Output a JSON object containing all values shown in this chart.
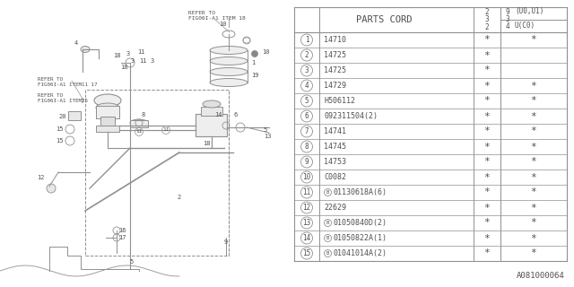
{
  "title": "PARTS CORD",
  "bg_color": "#ffffff",
  "rows": [
    {
      "num": "1",
      "b_prefix": false,
      "part": "14710",
      "c1": true,
      "c2": true
    },
    {
      "num": "2",
      "b_prefix": false,
      "part": "14725",
      "c1": true,
      "c2": false
    },
    {
      "num": "3",
      "b_prefix": false,
      "part": "14725",
      "c1": true,
      "c2": false
    },
    {
      "num": "4",
      "b_prefix": false,
      "part": "14729",
      "c1": true,
      "c2": true
    },
    {
      "num": "5",
      "b_prefix": false,
      "part": "H506112",
      "c1": true,
      "c2": true
    },
    {
      "num": "6",
      "b_prefix": false,
      "part": "092311504(2)",
      "c1": true,
      "c2": true
    },
    {
      "num": "7",
      "b_prefix": false,
      "part": "14741",
      "c1": true,
      "c2": true
    },
    {
      "num": "8",
      "b_prefix": false,
      "part": "14745",
      "c1": true,
      "c2": true
    },
    {
      "num": "9",
      "b_prefix": false,
      "part": "14753",
      "c1": true,
      "c2": true
    },
    {
      "num": "10",
      "b_prefix": false,
      "part": "C0082",
      "c1": true,
      "c2": true
    },
    {
      "num": "11",
      "b_prefix": true,
      "part": "01130618A(6)",
      "c1": true,
      "c2": true
    },
    {
      "num": "12",
      "b_prefix": false,
      "part": "22629",
      "c1": true,
      "c2": true
    },
    {
      "num": "13",
      "b_prefix": true,
      "part": "01050840D(2)",
      "c1": true,
      "c2": true
    },
    {
      "num": "14",
      "b_prefix": true,
      "part": "01050822A(1)",
      "c1": true,
      "c2": true
    },
    {
      "num": "15",
      "b_prefix": true,
      "part": "01041014A(2)",
      "c1": true,
      "c2": true
    }
  ],
  "footer": "A081000064",
  "lc": "#909090",
  "tc": "#505050",
  "header_col2_top": "9",
  "header_col2_mid": "3",
  "header_col2_bot": "4",
  "header_col2_label_top": "(U0,U1)",
  "header_col1_top": "2",
  "header_col1_mid": "3",
  "header_col1_bot": "2",
  "header_col2_label_bot": "U(C0)"
}
